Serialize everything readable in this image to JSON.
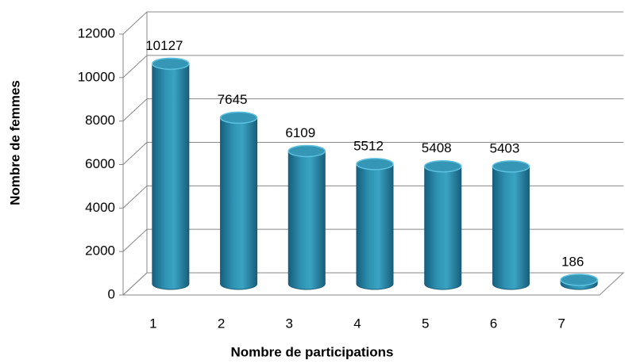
{
  "chart_data": {
    "type": "bar",
    "categories": [
      "1",
      "2",
      "3",
      "4",
      "5",
      "6",
      "7"
    ],
    "values": [
      10127,
      7645,
      6109,
      5512,
      5408,
      5403,
      186
    ],
    "ylim": [
      0,
      12000
    ],
    "yticks": [
      0,
      2000,
      4000,
      6000,
      8000,
      10000,
      12000
    ],
    "grid": true,
    "color": "#2b86a5",
    "x_label": "Nombre de participations",
    "y_label": "Nombre de femmes"
  }
}
